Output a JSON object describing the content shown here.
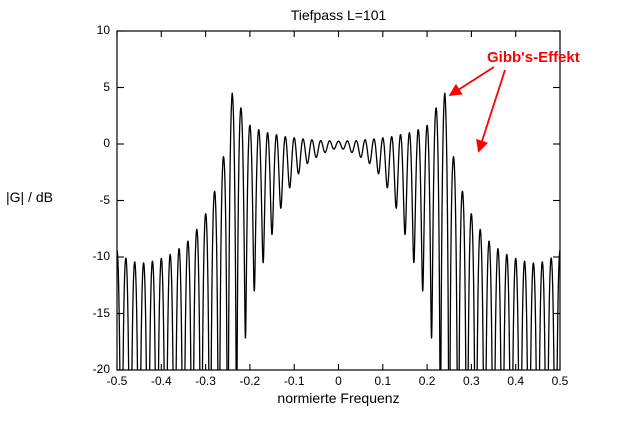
{
  "chart_data": {
    "type": "line",
    "title": "Tiefpass L=101",
    "xlabel": "normierte Frequenz",
    "ylabel": "|G| / dB",
    "xlim": [
      -0.5,
      0.5
    ],
    "ylim": [
      -20,
      10
    ],
    "xticks": [
      -0.5,
      -0.4,
      -0.3,
      -0.2,
      -0.1,
      0,
      0.1,
      0.2,
      0.3,
      0.4,
      0.5
    ],
    "xtick_labels": [
      "-0.5",
      "-0.4",
      "-0.3",
      "-0.2",
      "-0.1",
      "0",
      "0.1",
      "0.2",
      "0.3",
      "0.4",
      "0.5"
    ],
    "yticks": [
      10,
      5,
      0,
      -5,
      -10,
      -15,
      -20
    ],
    "ytick_labels": [
      "10",
      "5",
      "0",
      "-5",
      "-10",
      "-15",
      "-20"
    ],
    "grid": false,
    "line_color": "#000000",
    "background": "#ffffff",
    "filter": {
      "description": "FIR lowpass magnitude response with Gibbs ripple",
      "length": 101,
      "cutoff_normalized": 0.25,
      "peak_overshoot_db": 4.5,
      "peak_overshoot_freq": 0.24
    },
    "ripples_per_unit": 50,
    "envelope_top_db": [
      [
        0,
        0.25
      ],
      [
        0.04,
        0.3
      ],
      [
        0.08,
        0.45
      ],
      [
        0.12,
        0.65
      ],
      [
        0.16,
        1.0
      ],
      [
        0.19,
        1.4
      ],
      [
        0.21,
        1.9
      ],
      [
        0.221,
        3.3
      ],
      [
        0.24,
        4.5
      ],
      [
        0.25,
        1.6
      ],
      [
        0.258,
        -0.8
      ],
      [
        0.268,
        -2.6
      ],
      [
        0.28,
        -4.2
      ],
      [
        0.295,
        -5.8
      ],
      [
        0.315,
        -7.3
      ],
      [
        0.34,
        -8.6
      ],
      [
        0.37,
        -9.6
      ],
      [
        0.41,
        -10.3
      ],
      [
        0.45,
        -10.6
      ],
      [
        0.48,
        -10.1
      ],
      [
        0.5,
        -9.4
      ]
    ],
    "envelope_bottom_db": [
      [
        0,
        -0.3
      ],
      [
        0.04,
        -0.9
      ],
      [
        0.08,
        -2.0
      ],
      [
        0.12,
        -4.5
      ],
      [
        0.15,
        -8.0
      ],
      [
        0.17,
        -10.5
      ],
      [
        0.19,
        -13.0
      ],
      [
        0.205,
        -16.0
      ],
      [
        0.22,
        -19.5
      ],
      [
        0.232,
        -26.0
      ],
      [
        0.24,
        -40.0
      ],
      [
        0.5,
        -40.0
      ]
    ],
    "annotations": [
      {
        "text": "Gibb's-Effekt",
        "color": "#ff0000",
        "points_to": [
          {
            "f": 0.24,
            "db": 4.5
          },
          {
            "f": 0.305,
            "db": -0.5
          }
        ]
      }
    ]
  }
}
